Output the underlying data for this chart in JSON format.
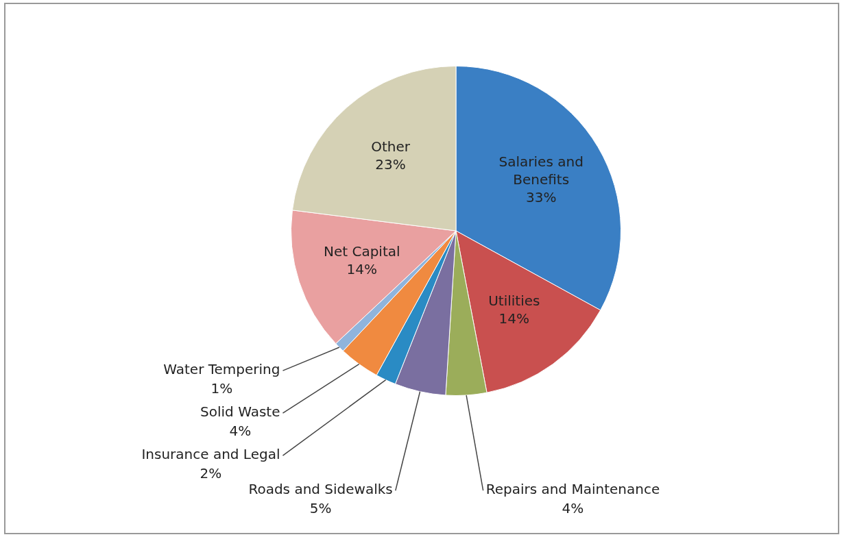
{
  "chart_data": {
    "type": "pie",
    "categories": [
      "Salaries and Benefits",
      "Utilities",
      "Repairs and Maintenance",
      "Roads and Sidewalks",
      "Insurance and Legal",
      "Solid Waste",
      "Water Tempering",
      "Net Capital",
      "Other"
    ],
    "values": [
      33,
      14,
      4,
      5,
      2,
      4,
      1,
      14,
      23
    ],
    "colors": [
      "#3a7fc4",
      "#c9504f",
      "#9bad5a",
      "#7a6fa0",
      "#2a8bc4",
      "#f08a40",
      "#8fb4dc",
      "#e9a0a0",
      "#d5d1b5"
    ],
    "value_labels": [
      "33%",
      "14%",
      "4%",
      "5%",
      "2%",
      "4%",
      "1%",
      "14%",
      "23%"
    ],
    "legend": false
  }
}
